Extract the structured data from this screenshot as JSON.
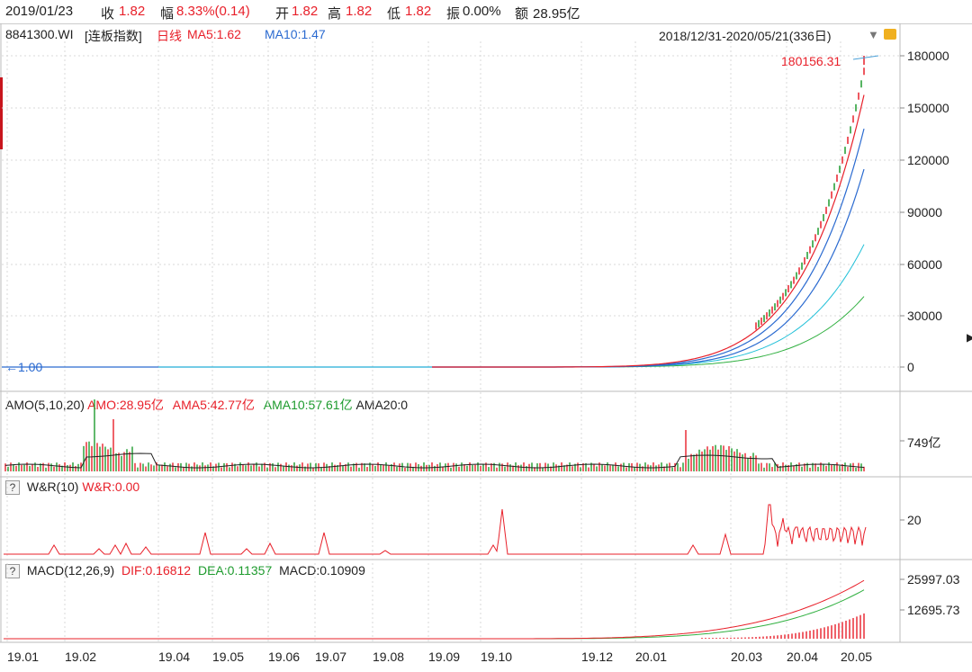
{
  "topbar": {
    "date": "2019/01/23",
    "close_label": "收",
    "close_value": "1.82",
    "change_label": "幅",
    "change_value": "8.33%(0.14)",
    "open_label": "开",
    "open_value": "1.82",
    "high_label": "高",
    "high_value": "1.82",
    "low_label": "低",
    "low_value": "1.82",
    "amplitude_label": "振",
    "amplitude_value": "0.00%",
    "amount_label": "额",
    "amount_value": "28.95亿"
  },
  "main_chart": {
    "code": "8841300.WI",
    "name": "[连板指数]",
    "period": "日线",
    "ma5": "MA5:1.62",
    "ma10": "MA10:1.47",
    "range": "2018/12/31-2020/05/21(336日)",
    "max_label": "180156.31",
    "min_label": "1.00",
    "y_ticks": [
      "180000",
      "150000",
      "120000",
      "90000",
      "60000",
      "30000",
      "0"
    ]
  },
  "amo_panel": {
    "title": "AMO(5,10,20)",
    "amo": "AMO:28.95亿",
    "ama5": "AMA5:42.77亿",
    "ama10": "AMA10:57.61亿",
    "ama20": "AMA20:0",
    "y_tick": "749亿"
  },
  "wr_panel": {
    "help": "?",
    "title": "W&R(10)",
    "value": "W&R:0.00",
    "y_tick": "20"
  },
  "macd_panel": {
    "help": "?",
    "title": "MACD(12,26,9)",
    "dif": "DIF:0.16812",
    "dea": "DEA:0.11357",
    "macd": "MACD:0.10909",
    "y_ticks": [
      "25997.03",
      "12695.73"
    ]
  },
  "x_axis": [
    "19.01",
    "19.02",
    "19.04",
    "19.05",
    "19.06",
    "19.07",
    "19.08",
    "19.09",
    "19.10",
    "19.12",
    "20.01",
    "20.03",
    "20.04",
    "20.05"
  ],
  "colors": {
    "up": "#e8202a",
    "down": "#1e9b2e",
    "ma5": "#e8202a",
    "ma10": "#2a6ad0",
    "ma20": "#20c0d8",
    "ma60": "#30b040",
    "axis": "#bbbbbb"
  },
  "chart_data": {
    "type": "line",
    "title": "",
    "series": [
      {
        "name": "MA5",
        "values": [
          1.62
        ]
      },
      {
        "name": "MA10",
        "values": [
          1.47
        ]
      }
    ],
    "ylim": [
      0,
      180000
    ],
    "y_ticks": [
      0,
      30000,
      60000,
      90000,
      120000,
      150000,
      180000
    ],
    "x_ticks": [
      "19.01",
      "19.02",
      "19.04",
      "19.05",
      "19.06",
      "19.07",
      "19.08",
      "19.09",
      "19.10",
      "19.12",
      "20.01",
      "20.03",
      "20.04",
      "20.05"
    ],
    "max_value": 180156.31,
    "min_value": 1.0
  }
}
